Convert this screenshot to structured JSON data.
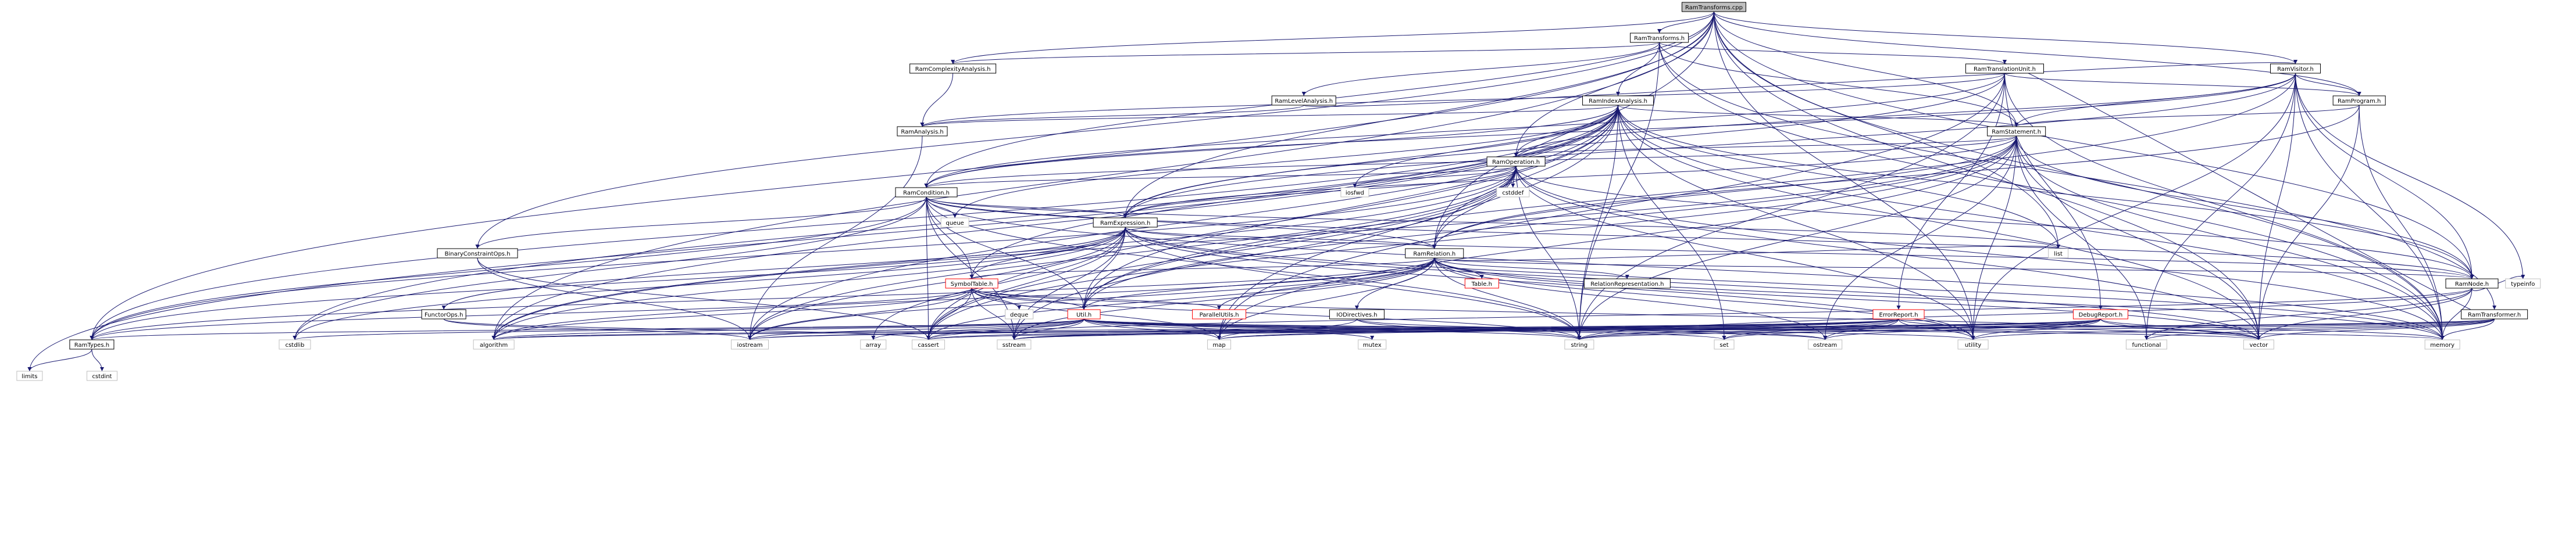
{
  "graph": {
    "root": "RamTransforms.cpp",
    "colors": {
      "edge": "#191970",
      "root_fill": "#bfbfbf",
      "node_fill": "#ffffff",
      "node_border": "#000000",
      "system_border": "#bfbfbf",
      "truncated_border": "#ff0000",
      "text": "#000000"
    },
    "nodes": [
      {
        "id": "cpp",
        "label": "RamTransforms.cpp",
        "kind": "root"
      },
      {
        "id": "rt",
        "label": "RamTransforms.h",
        "kind": "header"
      },
      {
        "id": "rca",
        "label": "RamComplexityAnalysis.h",
        "kind": "header"
      },
      {
        "id": "rtu",
        "label": "RamTranslationUnit.h",
        "kind": "header"
      },
      {
        "id": "rv",
        "label": "RamVisitor.h",
        "kind": "header"
      },
      {
        "id": "rla",
        "label": "RamLevelAnalysis.h",
        "kind": "header"
      },
      {
        "id": "ria",
        "label": "RamIndexAnalysis.h",
        "kind": "header"
      },
      {
        "id": "rp",
        "label": "RamProgram.h",
        "kind": "header"
      },
      {
        "id": "ra",
        "label": "RamAnalysis.h",
        "kind": "header"
      },
      {
        "id": "rs",
        "label": "RamStatement.h",
        "kind": "header"
      },
      {
        "id": "ro",
        "label": "RamOperation.h",
        "kind": "header"
      },
      {
        "id": "rcond",
        "label": "RamCondition.h",
        "kind": "header"
      },
      {
        "id": "rexpr",
        "label": "RamExpression.h",
        "kind": "header"
      },
      {
        "id": "bco",
        "label": "BinaryConstraintOps.h",
        "kind": "header"
      },
      {
        "id": "rrel",
        "label": "RamRelation.h",
        "kind": "header"
      },
      {
        "id": "st",
        "label": "SymbolTable.h",
        "kind": "truncated"
      },
      {
        "id": "tbl",
        "label": "Table.h",
        "kind": "truncated"
      },
      {
        "id": "relrep",
        "label": "RelationRepresentation.h",
        "kind": "header"
      },
      {
        "id": "rnode",
        "label": "RamNode.h",
        "kind": "header"
      },
      {
        "id": "fops",
        "label": "FunctorOps.h",
        "kind": "header"
      },
      {
        "id": "util",
        "label": "Util.h",
        "kind": "truncated"
      },
      {
        "id": "pu",
        "label": "ParallelUtils.h",
        "kind": "truncated"
      },
      {
        "id": "iod",
        "label": "IODirectives.h",
        "kind": "header"
      },
      {
        "id": "er",
        "label": "ErrorReport.h",
        "kind": "truncated"
      },
      {
        "id": "dr",
        "label": "DebugReport.h",
        "kind": "truncated"
      },
      {
        "id": "rtf",
        "label": "RamTransformer.h",
        "kind": "header"
      },
      {
        "id": "rtypes",
        "label": "RamTypes.h",
        "kind": "header"
      },
      {
        "id": "limits",
        "label": "limits",
        "kind": "system"
      },
      {
        "id": "cstdint",
        "label": "cstdint",
        "kind": "system"
      },
      {
        "id": "cstdlib",
        "label": "cstdlib",
        "kind": "system"
      },
      {
        "id": "algorithm",
        "label": "algorithm",
        "kind": "system"
      },
      {
        "id": "iostream",
        "label": "iostream",
        "kind": "system"
      },
      {
        "id": "array",
        "label": "array",
        "kind": "system"
      },
      {
        "id": "cassert",
        "label": "cassert",
        "kind": "system"
      },
      {
        "id": "sstream",
        "label": "sstream",
        "kind": "system"
      },
      {
        "id": "map",
        "label": "map",
        "kind": "system"
      },
      {
        "id": "mutex",
        "label": "mutex",
        "kind": "system"
      },
      {
        "id": "string",
        "label": "string",
        "kind": "system"
      },
      {
        "id": "set",
        "label": "set",
        "kind": "system"
      },
      {
        "id": "ostream",
        "label": "ostream",
        "kind": "system"
      },
      {
        "id": "utility",
        "label": "utility",
        "kind": "system"
      },
      {
        "id": "functional",
        "label": "functional",
        "kind": "system"
      },
      {
        "id": "vector",
        "label": "vector",
        "kind": "system"
      },
      {
        "id": "memory",
        "label": "memory",
        "kind": "system"
      },
      {
        "id": "typeinfo",
        "label": "typeinfo",
        "kind": "system"
      },
      {
        "id": "list",
        "label": "list",
        "kind": "system"
      },
      {
        "id": "queue",
        "label": "queue",
        "kind": "system"
      },
      {
        "id": "deque",
        "label": "deque",
        "kind": "system"
      },
      {
        "id": "iosfwd",
        "label": "iosfwd",
        "kind": "system"
      },
      {
        "id": "cstddef",
        "label": "cstddef",
        "kind": "system"
      }
    ],
    "edges": [
      [
        "cpp",
        "rt"
      ],
      [
        "cpp",
        "rca"
      ],
      [
        "cpp",
        "rv"
      ],
      [
        "cpp",
        "rp"
      ],
      [
        "cpp",
        "rs"
      ],
      [
        "cpp",
        "ro"
      ],
      [
        "cpp",
        "rcond"
      ],
      [
        "cpp",
        "rexpr"
      ],
      [
        "cpp",
        "bco"
      ],
      [
        "cpp",
        "rrel"
      ],
      [
        "cpp",
        "rnode"
      ],
      [
        "cpp",
        "rtypes"
      ],
      [
        "cpp",
        "algorithm"
      ],
      [
        "cpp",
        "list"
      ],
      [
        "cpp",
        "utility"
      ],
      [
        "cpp",
        "vector"
      ],
      [
        "cpp",
        "memory"
      ],
      [
        "rt",
        "rca"
      ],
      [
        "rt",
        "rtu"
      ],
      [
        "rt",
        "rla"
      ],
      [
        "rt",
        "ria"
      ],
      [
        "rt",
        "rs"
      ],
      [
        "rt",
        "rtf"
      ],
      [
        "rt",
        "string"
      ],
      [
        "rt",
        "memory"
      ],
      [
        "rca",
        "ra"
      ],
      [
        "rtu",
        "rp"
      ],
      [
        "rtu",
        "ra"
      ],
      [
        "rtu",
        "er"
      ],
      [
        "rtu",
        "dr"
      ],
      [
        "rtu",
        "map"
      ],
      [
        "rtu",
        "string"
      ],
      [
        "rtu",
        "memory"
      ],
      [
        "rtu",
        "rexpr"
      ],
      [
        "rtu",
        "rcond"
      ],
      [
        "rv",
        "rp"
      ],
      [
        "rv",
        "rs"
      ],
      [
        "rv",
        "ro"
      ],
      [
        "rv",
        "rcond"
      ],
      [
        "rv",
        "rexpr"
      ],
      [
        "rv",
        "rnode"
      ],
      [
        "rv",
        "util"
      ],
      [
        "rv",
        "typeinfo"
      ],
      [
        "rv",
        "functional"
      ],
      [
        "rv",
        "vector"
      ],
      [
        "rv",
        "memory"
      ],
      [
        "rv",
        "utility"
      ],
      [
        "rla",
        "ra"
      ],
      [
        "rla",
        "rv"
      ],
      [
        "ria",
        "ra"
      ],
      [
        "ria",
        "rs"
      ],
      [
        "ria",
        "ro"
      ],
      [
        "ria",
        "rcond"
      ],
      [
        "ria",
        "rexpr"
      ],
      [
        "ria",
        "rrel"
      ],
      [
        "ria",
        "rnode"
      ],
      [
        "ria",
        "rtypes"
      ],
      [
        "ria",
        "util"
      ],
      [
        "ria",
        "st"
      ],
      [
        "ria",
        "set"
      ],
      [
        "ria",
        "string"
      ],
      [
        "ria",
        "vector"
      ],
      [
        "ria",
        "memory"
      ],
      [
        "ria",
        "iosfwd"
      ],
      [
        "ria",
        "map"
      ],
      [
        "ria",
        "cstdlib"
      ],
      [
        "ria",
        "utility"
      ],
      [
        "ria",
        "limits"
      ],
      [
        "ria",
        "algorithm"
      ],
      [
        "ria",
        "cassert"
      ],
      [
        "ria",
        "iostream"
      ],
      [
        "ria",
        "queue"
      ],
      [
        "ria",
        "list"
      ],
      [
        "rp",
        "rs"
      ],
      [
        "rp",
        "rrel"
      ],
      [
        "rp",
        "vector"
      ],
      [
        "rp",
        "memory"
      ],
      [
        "ra",
        "iostream"
      ],
      [
        "rs",
        "ro"
      ],
      [
        "rs",
        "rrel"
      ],
      [
        "rs",
        "rnode"
      ],
      [
        "rs",
        "rcond"
      ],
      [
        "rs",
        "rexpr"
      ],
      [
        "rs",
        "util"
      ],
      [
        "rs",
        "functional"
      ],
      [
        "rs",
        "vector"
      ],
      [
        "rs",
        "memory"
      ],
      [
        "rs",
        "string"
      ],
      [
        "rs",
        "ostream"
      ],
      [
        "rs",
        "utility"
      ],
      [
        "rs",
        "algorithm"
      ],
      [
        "rs",
        "cassert"
      ],
      [
        "rs",
        "map"
      ],
      [
        "ro",
        "rcond"
      ],
      [
        "ro",
        "rexpr"
      ],
      [
        "ro",
        "rrel"
      ],
      [
        "ro",
        "rnode"
      ],
      [
        "ro",
        "util"
      ],
      [
        "ro",
        "rtypes"
      ],
      [
        "ro",
        "iosfwd"
      ],
      [
        "ro",
        "cstddef"
      ],
      [
        "ro",
        "string"
      ],
      [
        "ro",
        "vector"
      ],
      [
        "ro",
        "memory"
      ],
      [
        "ro",
        "utility"
      ],
      [
        "ro",
        "cassert"
      ],
      [
        "ro",
        "sstream"
      ],
      [
        "ro",
        "algorithm"
      ],
      [
        "ro",
        "iostream"
      ],
      [
        "rcond",
        "rexpr"
      ],
      [
        "rcond",
        "rrel"
      ],
      [
        "rcond",
        "rnode"
      ],
      [
        "rcond",
        "bco"
      ],
      [
        "rcond",
        "st"
      ],
      [
        "rcond",
        "util"
      ],
      [
        "rcond",
        "queue"
      ],
      [
        "rcond",
        "memory"
      ],
      [
        "rcond",
        "sstream"
      ],
      [
        "rcond",
        "string"
      ],
      [
        "rcond",
        "cassert"
      ],
      [
        "rcond",
        "rtypes"
      ],
      [
        "rcond",
        "cstdlib"
      ],
      [
        "rcond",
        "list"
      ],
      [
        "rexpr",
        "rrel"
      ],
      [
        "rexpr",
        "rnode"
      ],
      [
        "rexpr",
        "fops"
      ],
      [
        "rexpr",
        "st"
      ],
      [
        "rexpr",
        "util"
      ],
      [
        "rexpr",
        "rtypes"
      ],
      [
        "rexpr",
        "algorithm"
      ],
      [
        "rexpr",
        "array"
      ],
      [
        "rexpr",
        "cassert"
      ],
      [
        "rexpr",
        "cstdlib"
      ],
      [
        "rexpr",
        "memory"
      ],
      [
        "rexpr",
        "sstream"
      ],
      [
        "rexpr",
        "string"
      ],
      [
        "rexpr",
        "utility"
      ],
      [
        "rexpr",
        "vector"
      ],
      [
        "rexpr",
        "iostream"
      ],
      [
        "bco",
        "cassert"
      ],
      [
        "bco",
        "iostream"
      ],
      [
        "rrel",
        "st"
      ],
      [
        "rrel",
        "tbl"
      ],
      [
        "rrel",
        "relrep"
      ],
      [
        "rrel",
        "pu"
      ],
      [
        "rrel",
        "iod"
      ],
      [
        "rrel",
        "util"
      ],
      [
        "rrel",
        "rnode"
      ],
      [
        "rrel",
        "rtypes"
      ],
      [
        "rrel",
        "list"
      ],
      [
        "rrel",
        "string"
      ],
      [
        "rrel",
        "utility"
      ],
      [
        "rrel",
        "memory"
      ],
      [
        "rrel",
        "vector"
      ],
      [
        "rrel",
        "cassert"
      ],
      [
        "rrel",
        "map"
      ],
      [
        "rrel",
        "sstream"
      ],
      [
        "rrel",
        "algorithm"
      ],
      [
        "rrel",
        "iostream"
      ],
      [
        "rrel",
        "ostream"
      ],
      [
        "st",
        "util"
      ],
      [
        "st",
        "pu"
      ],
      [
        "st",
        "rtypes"
      ],
      [
        "st",
        "deque"
      ],
      [
        "st",
        "iostream"
      ],
      [
        "st",
        "map"
      ],
      [
        "st",
        "string"
      ],
      [
        "st",
        "vector"
      ],
      [
        "st",
        "cassert"
      ],
      [
        "st",
        "algorithm"
      ],
      [
        "st",
        "sstream"
      ],
      [
        "iod",
        "map"
      ],
      [
        "iod",
        "string"
      ],
      [
        "iod",
        "ostream"
      ],
      [
        "rnode",
        "functional"
      ],
      [
        "rnode",
        "vector"
      ],
      [
        "rnode",
        "memory"
      ],
      [
        "rnode",
        "typeinfo"
      ],
      [
        "rnode",
        "cassert"
      ],
      [
        "rnode",
        "string"
      ],
      [
        "fops",
        "cassert"
      ],
      [
        "fops",
        "iostream"
      ],
      [
        "util",
        "rtypes"
      ],
      [
        "util",
        "cstdlib"
      ],
      [
        "util",
        "algorithm"
      ],
      [
        "util",
        "iostream"
      ],
      [
        "util",
        "array"
      ],
      [
        "util",
        "cassert"
      ],
      [
        "util",
        "sstream"
      ],
      [
        "util",
        "map"
      ],
      [
        "util",
        "mutex"
      ],
      [
        "util",
        "string"
      ],
      [
        "util",
        "set"
      ],
      [
        "util",
        "ostream"
      ],
      [
        "util",
        "utility"
      ],
      [
        "util",
        "vector"
      ],
      [
        "util",
        "memory"
      ],
      [
        "rtypes",
        "limits"
      ],
      [
        "rtypes",
        "cstdint"
      ],
      [
        "er",
        "set"
      ],
      [
        "er",
        "string"
      ],
      [
        "er",
        "sstream"
      ],
      [
        "er",
        "iostream"
      ],
      [
        "er",
        "ostream"
      ],
      [
        "er",
        "utility"
      ],
      [
        "er",
        "vector"
      ],
      [
        "er",
        "cassert"
      ],
      [
        "er",
        "map"
      ],
      [
        "er",
        "algorithm"
      ],
      [
        "dr",
        "ostream"
      ],
      [
        "dr",
        "string"
      ],
      [
        "dr",
        "sstream"
      ],
      [
        "dr",
        "utility"
      ],
      [
        "dr",
        "vector"
      ],
      [
        "dr",
        "memory"
      ],
      [
        "dr",
        "set"
      ],
      [
        "dr",
        "map"
      ],
      [
        "dr",
        "iostream"
      ],
      [
        "rtf",
        "rtu"
      ],
      [
        "rtf",
        "functional"
      ],
      [
        "rtf",
        "string"
      ],
      [
        "rtf",
        "utility"
      ],
      [
        "rtf",
        "vector"
      ],
      [
        "rtf",
        "memory"
      ],
      [
        "rtf",
        "cassert"
      ],
      [
        "rtf",
        "algorithm"
      ],
      [
        "rtf",
        "sstream"
      ]
    ]
  }
}
